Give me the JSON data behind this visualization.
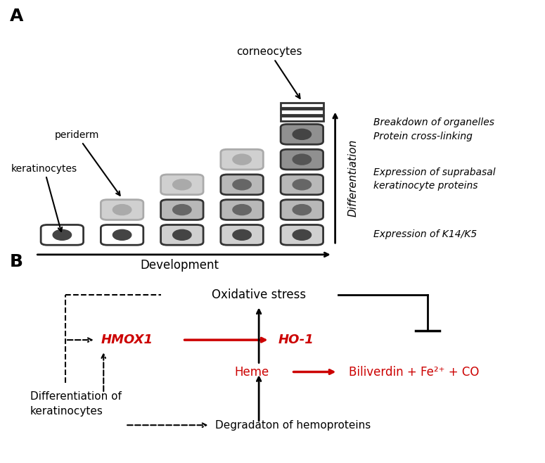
{
  "panel_A_label": "A",
  "panel_B_label": "B",
  "title_corneocytes": "corneocytes",
  "label_keratinocytes": "keratinocytes",
  "label_periderm": "periderm",
  "label_development": "Development",
  "label_differentiation": "Differentiation",
  "text_breakdown": "Breakdown of organelles\nProtein cross-linking",
  "text_suprabasal": "Expression of suprabasal\nkeratinocyte proteins",
  "text_k14": "Expression of K14/K5",
  "label_oxidative": "Oxidative stress",
  "label_hmox1": "HMOX1",
  "label_ho1": "HO-1",
  "label_heme": "Heme",
  "label_biliverdin": "Biliverdin + Fe²⁺ + CO",
  "label_differentiation_of": "Differentiation of\nkeratinocytes",
  "label_degradation": "Degradaton of hemoproteins",
  "color_black": "#000000",
  "color_red": "#cc0000",
  "color_white": "#ffffff",
  "color_light_gray": "#d0d0d0",
  "color_mid_gray": "#b8b8b8",
  "color_dark_gray": "#555555",
  "color_very_dark": "#444444",
  "color_bg": "#ffffff"
}
